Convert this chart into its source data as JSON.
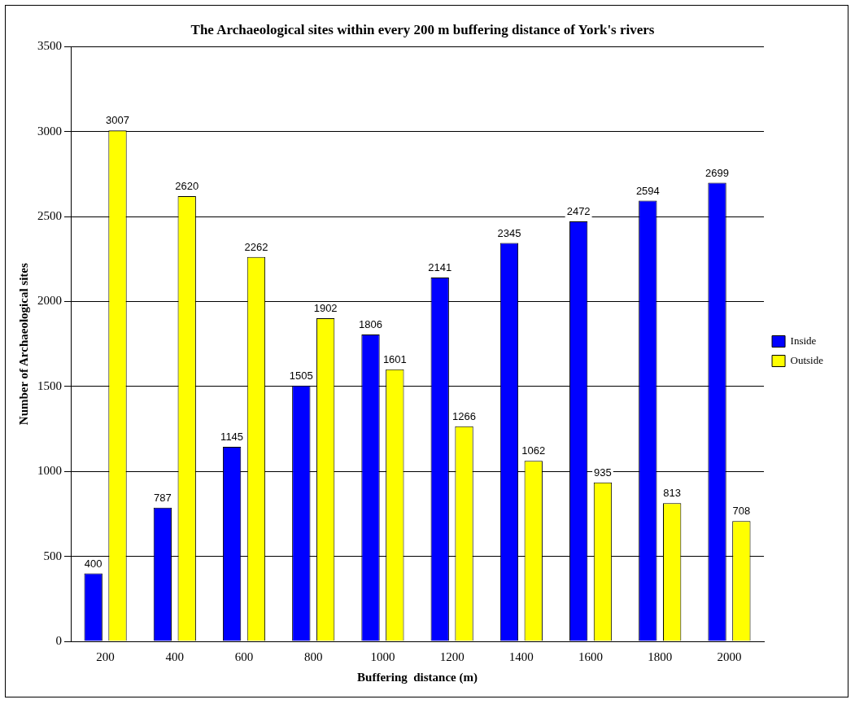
{
  "chart_data": {
    "type": "bar",
    "title": "The Archaeological sites within every 200 m buffering distance of York's rivers",
    "xlabel": "Buffering  distance (m)",
    "ylabel": "Number of Archaeological sites",
    "categories": [
      "200",
      "400",
      "600",
      "800",
      "1000",
      "1200",
      "1400",
      "1600",
      "1800",
      "2000"
    ],
    "series": [
      {
        "name": "Inside",
        "color": "#0000ff",
        "values": [
          400,
          787,
          1145,
          1505,
          1806,
          2141,
          2345,
          2472,
          2594,
          2699
        ]
      },
      {
        "name": "Outside",
        "color": "#ffff00",
        "values": [
          3007,
          2620,
          2262,
          1902,
          1601,
          1266,
          1062,
          935,
          813,
          708
        ]
      }
    ],
    "ylim": [
      0,
      3500
    ],
    "yticks": [
      0,
      500,
      1000,
      1500,
      2000,
      2500,
      3000,
      3500
    ],
    "grid": "y",
    "legend": "right",
    "data_labels": true
  }
}
